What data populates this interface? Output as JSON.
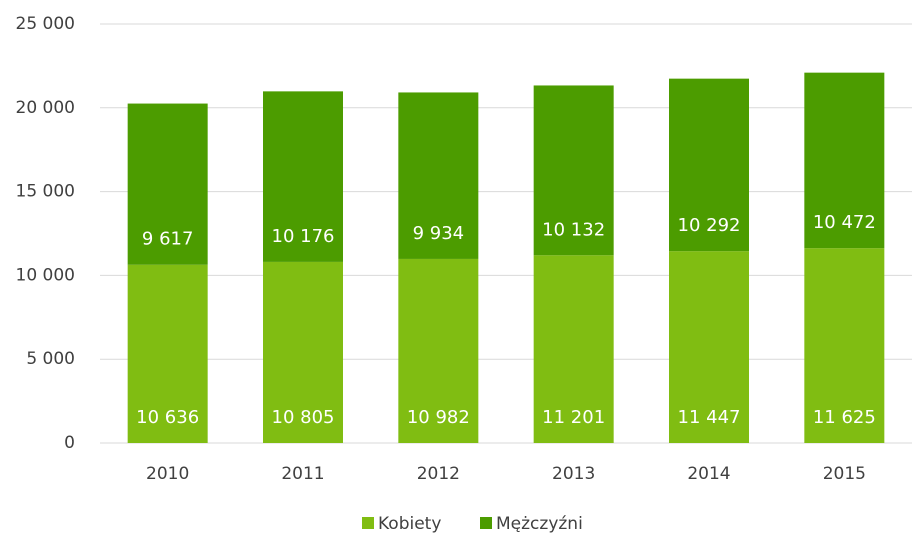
{
  "chart_data": {
    "type": "stacked_bar",
    "categories": [
      "2010",
      "2011",
      "2012",
      "2013",
      "2014",
      "2015"
    ],
    "series": [
      {
        "name": "Kobiety",
        "color": "#80bd12",
        "values": [
          10636,
          10805,
          10982,
          11201,
          11447,
          11625
        ],
        "value_labels": [
          "10 636",
          "10 805",
          "10 982",
          "11 201",
          "11 447",
          "11 625"
        ]
      },
      {
        "name": "Mężczyźni",
        "color": "#4c9c00",
        "values": [
          9617,
          10176,
          9934,
          10132,
          10292,
          10472
        ],
        "value_labels": [
          "9 617",
          "10 176",
          "9 934",
          "10 132",
          "10 292",
          "10 472"
        ]
      }
    ],
    "ylim": [
      0,
      25000
    ],
    "yticks": [
      0,
      {
        "value": 5000,
        "label": "5 000"
      },
      {
        "value": 10000,
        "label": "10 000"
      },
      {
        "value": 15000,
        "label": "15 000"
      },
      {
        "value": 20000,
        "label": "20 000"
      },
      {
        "value": 25000,
        "label": "25 000"
      }
    ],
    "grid": true,
    "legend": "bottom"
  }
}
